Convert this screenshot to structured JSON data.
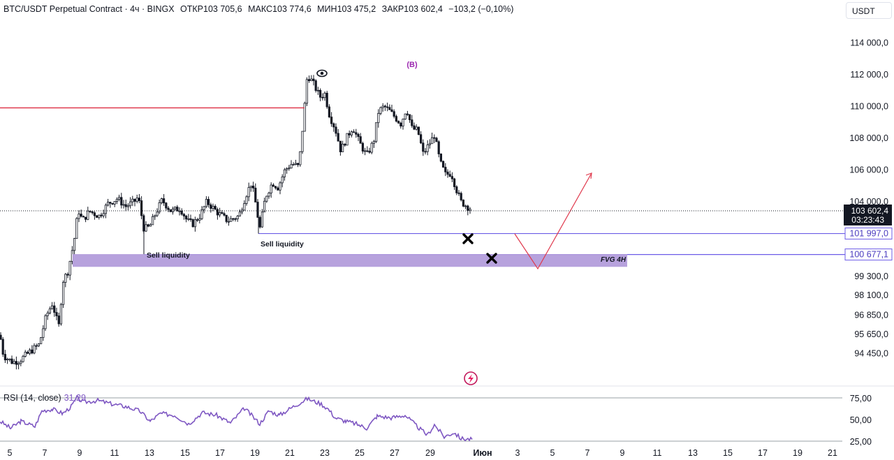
{
  "header": {
    "symbol": "BTC/USDT Perpetual Contract · 4ч · BINGX",
    "open": "ОТКР103 705,6",
    "high": "МАКС103 774,6",
    "low": "МИН103 475,2",
    "close": "ЗАКР103 602,4",
    "change": "−103,2 (−0,10%)"
  },
  "currency_button": "USDT",
  "colors": {
    "up": "#ffffff",
    "down": "#131722",
    "accent_red": "#e03a4e",
    "purple": "#6c5ce7",
    "fvg": "#b39ddb",
    "rsi": "#7e57c2"
  },
  "chart_data": {
    "type": "candlestick",
    "price_axis": [
      "114 000,0",
      "112 000,0",
      "110 000,0",
      "108 000,0",
      "106 000,0",
      "104 000,0",
      "99 300,0",
      "98 100,0",
      "96 850,0",
      "95 650,0",
      "94 450,0"
    ],
    "price_ylim": [
      93500,
      115000
    ],
    "x_tick_labels": [
      "5",
      "7",
      "9",
      "11",
      "13",
      "15",
      "17",
      "19",
      "21",
      "23",
      "25",
      "27",
      "29",
      "Июн",
      "3",
      "5",
      "7",
      "9",
      "11",
      "13",
      "15",
      "17",
      "19",
      "21"
    ],
    "current_price": "103 602,4",
    "countdown": "03:23:43",
    "levels": [
      {
        "label": "101 997,0",
        "value": 101997.0
      },
      {
        "label": "100 677,1",
        "value": 100677.1
      }
    ],
    "annotations": {
      "sell_liquidity_1": "Sell liquidity",
      "sell_liquidity_2": "Sell liquidity",
      "fvg": "FVG 4H",
      "wave": "(B)"
    },
    "fvg_zone": [
      99900,
      100700
    ],
    "resistance_line": 110000,
    "projected_path": [
      {
        "date": "May 31",
        "price": 102000
      },
      {
        "date": "Jun 4",
        "price": 100100
      },
      {
        "date": "Jun 8",
        "price": 105800
      }
    ],
    "rsi": {
      "label": "RSI (14, close)",
      "value": "31,29",
      "axis": [
        "75,00",
        "50,00",
        "25,00"
      ],
      "ylim": [
        25,
        80
      ]
    }
  }
}
